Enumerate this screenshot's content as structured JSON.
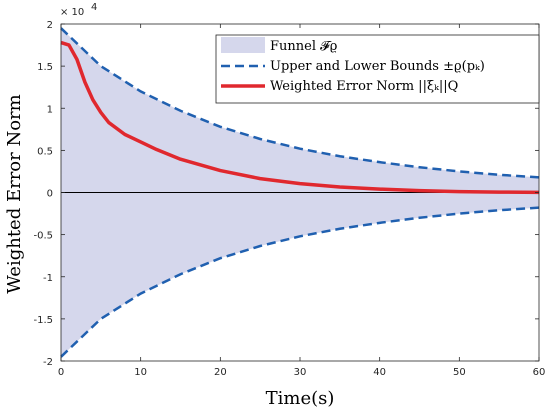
{
  "chart_data": {
    "type": "line",
    "xlabel": "Time(s)",
    "ylabel": "Weighted Error Norm",
    "xlim": [
      0,
      60
    ],
    "ylim": [
      -20000,
      20000
    ],
    "y_scale_multiplier_text": "× 10",
    "y_scale_exponent": "4",
    "x_ticks": [
      0,
      10,
      20,
      30,
      40,
      50,
      60
    ],
    "x_tick_labels": [
      "0",
      "10",
      "20",
      "30",
      "40",
      "50",
      "60"
    ],
    "y_ticks": [
      2,
      1.5,
      1,
      0.5,
      0,
      -0.5,
      -1,
      -1.5,
      -2
    ],
    "y_tick_labels": [
      "2",
      "1.5",
      "1",
      "0.5",
      "0",
      "-0.5",
      "-1",
      "-1.5",
      "-2"
    ],
    "grid": false,
    "legend_position": "top-right",
    "legend": [
      "Funnel 𝓕ϱ",
      "Upper and Lower Bounds ±ϱ(pₖ)",
      "Weighted Error Norm ||ξₖ||Q"
    ],
    "colors": {
      "funnel_fill": "#d5d7ec",
      "bounds": "#2060b0",
      "error": "#e0282e",
      "zero_line": "#000000"
    },
    "series": [
      {
        "name": "Upper and Lower Bounds ±ϱ(pₖ)",
        "style": "dashed",
        "x": [
          0,
          5,
          10,
          15,
          20,
          25,
          30,
          35,
          40,
          45,
          50,
          55,
          60
        ],
        "upper": [
          19500,
          15000,
          12000,
          9700,
          7800,
          6350,
          5200,
          4300,
          3600,
          3000,
          2500,
          2100,
          1800
        ],
        "lower": [
          -19500,
          -15000,
          -12000,
          -9700,
          -7800,
          -6350,
          -5200,
          -4300,
          -3600,
          -3000,
          -2500,
          -2100,
          -1800
        ]
      },
      {
        "name": "Weighted Error Norm ||ξₖ||Q",
        "style": "solid",
        "x": [
          0,
          1,
          2,
          3,
          4,
          5,
          6,
          8,
          10,
          12,
          15,
          20,
          25,
          30,
          35,
          40,
          45,
          50,
          55,
          60
        ],
        "values": [
          17800,
          17500,
          15800,
          13100,
          11000,
          9500,
          8300,
          6900,
          6000,
          5100,
          3950,
          2600,
          1650,
          1050,
          650,
          400,
          220,
          110,
          50,
          20
        ]
      }
    ]
  }
}
